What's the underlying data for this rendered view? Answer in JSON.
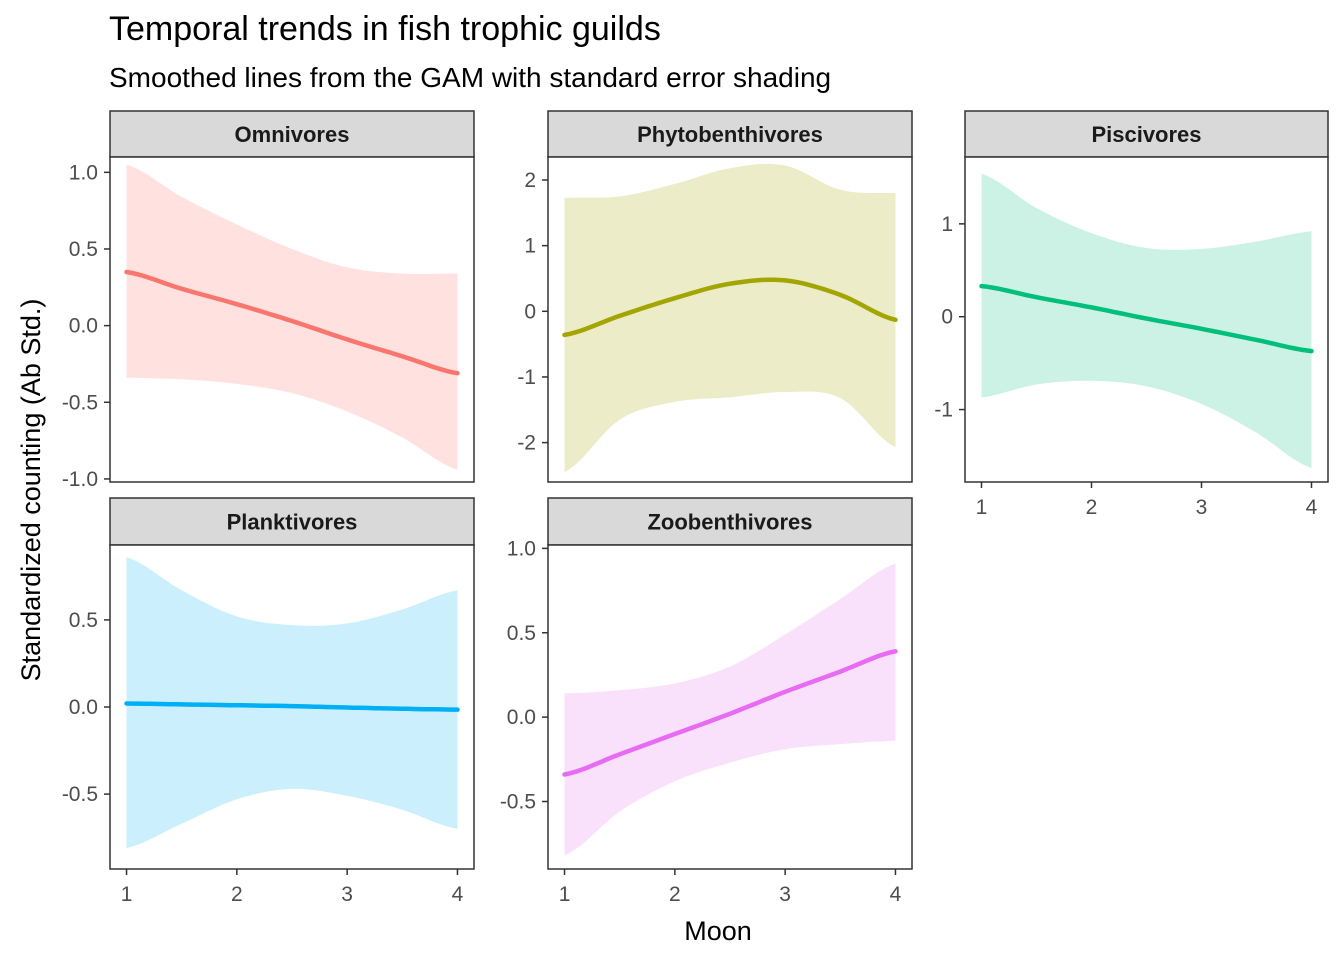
{
  "title": "Temporal trends in fish trophic guilds",
  "subtitle": "Smoothed lines from the GAM with standard error shading",
  "chart_data": {
    "type": "line",
    "title": "Temporal trends in fish trophic guilds",
    "subtitle": "Smoothed lines from the GAM with standard error shading",
    "xlabel": "Moon",
    "ylabel": "Standardized counting (Ab Std.)",
    "grid": false,
    "legend": "none",
    "x": [
      1,
      1.5,
      2,
      2.5,
      3,
      3.5,
      4
    ],
    "xticks": [
      1,
      2,
      3,
      4
    ],
    "facets": [
      {
        "name": "Omnivores",
        "color": "#F8766D",
        "fill": "#FFE1E0",
        "ylim": [
          -1.02,
          1.1
        ],
        "yticks": [
          1.0,
          0.5,
          0.0,
          -0.5,
          -1.0
        ],
        "ytick_labels": [
          "1.0",
          "0.5",
          "0.0",
          "-0.5",
          "-1.0"
        ],
        "fit": [
          0.35,
          0.24,
          0.14,
          0.03,
          -0.09,
          -0.2,
          -0.31
        ],
        "lower": [
          -0.34,
          -0.35,
          -0.38,
          -0.44,
          -0.56,
          -0.73,
          -0.94
        ],
        "upper": [
          1.05,
          0.84,
          0.66,
          0.5,
          0.38,
          0.34,
          0.34
        ]
      },
      {
        "name": "Phytobenthivores",
        "color": "#A3A500",
        "fill": "#ECECC8",
        "ylim": [
          -2.6,
          2.35
        ],
        "yticks": [
          2,
          1,
          0,
          -1,
          -2
        ],
        "ytick_labels": [
          "2",
          "1",
          "0",
          "-1",
          "-2"
        ],
        "fit": [
          -0.36,
          -0.07,
          0.2,
          0.42,
          0.47,
          0.25,
          -0.13
        ],
        "lower": [
          -2.45,
          -1.65,
          -1.38,
          -1.31,
          -1.23,
          -1.32,
          -2.07
        ],
        "upper": [
          1.73,
          1.75,
          1.94,
          2.18,
          2.22,
          1.85,
          1.8
        ]
      },
      {
        "name": "Piscivores",
        "color": "#00BF7D",
        "fill": "#CCF2E5",
        "ylim": [
          -1.78,
          1.72
        ],
        "yticks": [
          1,
          0,
          -1
        ],
        "ytick_labels": [
          "1",
          "0",
          "-1"
        ],
        "fit": [
          0.33,
          0.21,
          0.1,
          -0.02,
          -0.13,
          -0.25,
          -0.37
        ],
        "lower": [
          -0.87,
          -0.73,
          -0.69,
          -0.75,
          -0.94,
          -1.25,
          -1.63
        ],
        "upper": [
          1.54,
          1.17,
          0.9,
          0.74,
          0.73,
          0.81,
          0.92
        ]
      },
      {
        "name": "Planktivores",
        "color": "#00B0F6",
        "fill": "#CCEFFD",
        "ylim": [
          -0.93,
          0.93
        ],
        "yticks": [
          0.5,
          0.0,
          -0.5
        ],
        "ytick_labels": [
          "0.5",
          "0.0",
          "-0.5"
        ],
        "fit": [
          0.02,
          0.015,
          0.01,
          0.005,
          -0.003,
          -0.01,
          -0.015
        ],
        "lower": [
          -0.81,
          -0.67,
          -0.53,
          -0.47,
          -0.51,
          -0.59,
          -0.7
        ],
        "upper": [
          0.86,
          0.67,
          0.52,
          0.47,
          0.48,
          0.56,
          0.67
        ]
      },
      {
        "name": "Zoobenthivores",
        "color": "#E76BF3",
        "fill": "#F9E1FC",
        "ylim": [
          -0.9,
          1.02
        ],
        "yticks": [
          1.0,
          0.5,
          0.0,
          -0.5
        ],
        "ytick_labels": [
          "1.0",
          "0.5",
          "0.0",
          "-0.5"
        ],
        "fit": [
          -0.34,
          -0.22,
          -0.1,
          0.02,
          0.15,
          0.27,
          0.39
        ],
        "lower": [
          -0.82,
          -0.56,
          -0.38,
          -0.27,
          -0.19,
          -0.16,
          -0.14
        ],
        "upper": [
          0.14,
          0.16,
          0.2,
          0.3,
          0.49,
          0.7,
          0.91
        ]
      }
    ]
  }
}
